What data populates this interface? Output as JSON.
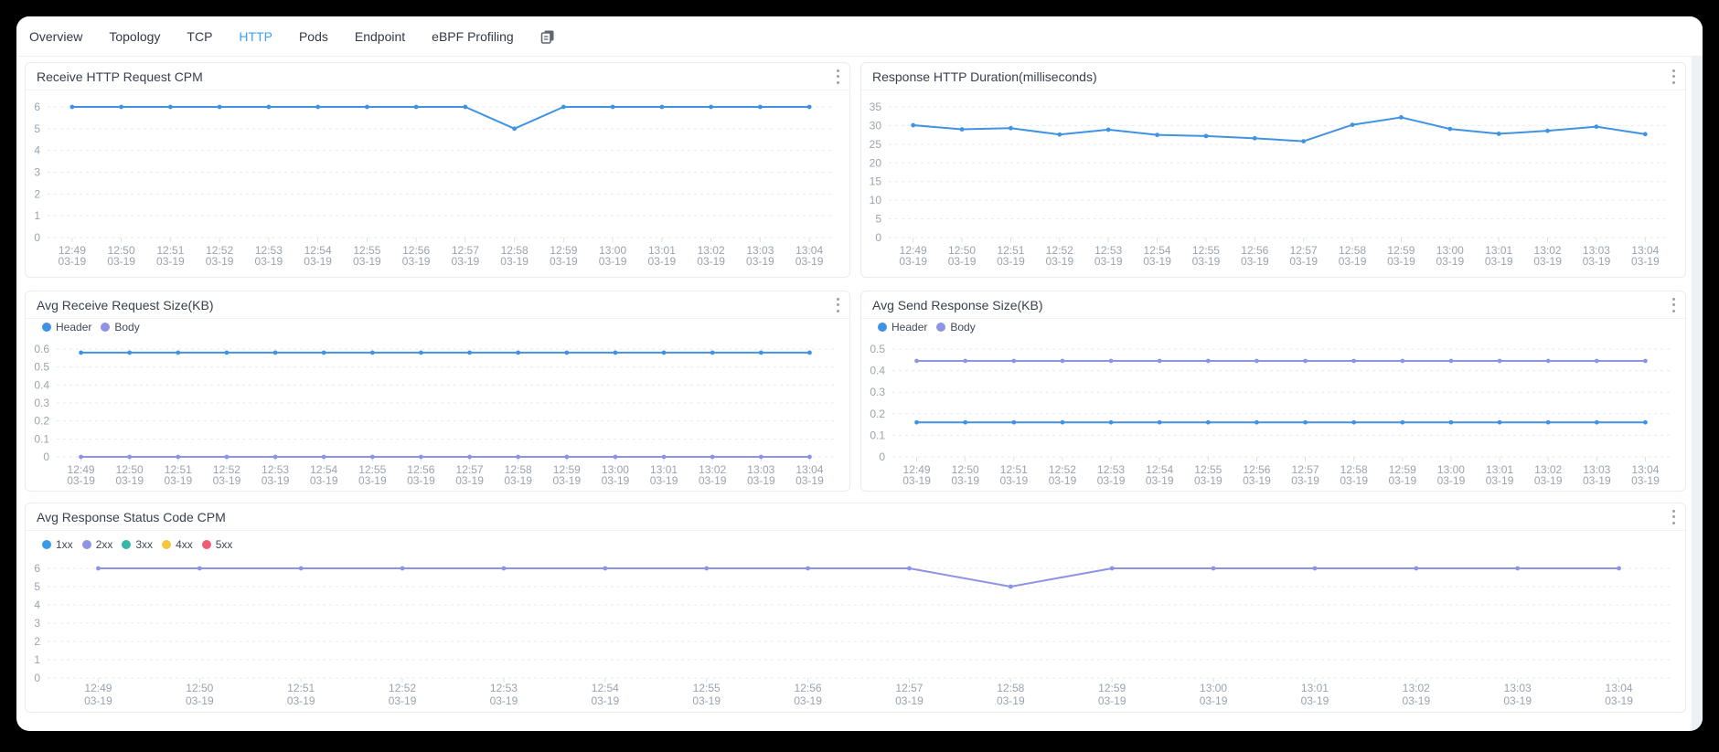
{
  "tabs": {
    "items": [
      {
        "label": "Overview",
        "active": false
      },
      {
        "label": "Topology",
        "active": false
      },
      {
        "label": "TCP",
        "active": false
      },
      {
        "label": "HTTP",
        "active": true
      },
      {
        "label": "Pods",
        "active": false
      },
      {
        "label": "Endpoint",
        "active": false
      },
      {
        "label": "eBPF Profiling",
        "active": false
      }
    ]
  },
  "colors": {
    "active_tab": "#3ba0f8",
    "line_blue": "#4093e4",
    "line_purple": "#8e94e3",
    "teal": "#38b6a8",
    "amber": "#f7c53f",
    "rose": "#f15c75"
  },
  "x_axis": {
    "times": [
      "12:49",
      "12:50",
      "12:51",
      "12:52",
      "12:53",
      "12:54",
      "12:55",
      "12:56",
      "12:57",
      "12:58",
      "12:59",
      "13:00",
      "13:01",
      "13:02",
      "13:03",
      "13:04"
    ],
    "date": "03-19"
  },
  "chart_data": [
    {
      "type": "line",
      "title": "Receive HTTP Request CPM",
      "ylim": [
        0,
        6
      ],
      "yticks": [
        0,
        1,
        2,
        3,
        4,
        5,
        6
      ],
      "legend_visible": false,
      "grid": "dashed-horizontal",
      "series": [
        {
          "name": "Receive HTTP Request CPM",
          "color": "#4093e4",
          "values": [
            6,
            6,
            6,
            6,
            6,
            6,
            6,
            6,
            6,
            5,
            6,
            6,
            6,
            6,
            6,
            6
          ]
        }
      ]
    },
    {
      "type": "line",
      "title": "Response HTTP Duration(milliseconds)",
      "ylim": [
        0,
        35
      ],
      "yticks": [
        0,
        5,
        10,
        15,
        20,
        25,
        30,
        35
      ],
      "legend_visible": false,
      "grid": "dashed-horizontal",
      "series": [
        {
          "name": "Response HTTP Duration",
          "color": "#4093e4",
          "values": [
            30.1,
            29,
            29.3,
            27.6,
            28.9,
            27.5,
            27.2,
            26.6,
            25.8,
            30.2,
            32.2,
            29.1,
            27.8,
            28.6,
            29.7,
            27.7
          ]
        }
      ]
    },
    {
      "type": "line",
      "title": "Avg Receive Request Size(KB)",
      "ylim": [
        0,
        0.6
      ],
      "yticks": [
        0,
        0.1,
        0.2,
        0.3,
        0.4,
        0.5,
        0.6
      ],
      "legend_visible": true,
      "grid": "dashed-horizontal",
      "series": [
        {
          "name": "Header",
          "color": "#4093e4",
          "values": [
            0.58,
            0.58,
            0.58,
            0.58,
            0.58,
            0.58,
            0.58,
            0.58,
            0.58,
            0.58,
            0.58,
            0.58,
            0.58,
            0.58,
            0.58,
            0.58
          ]
        },
        {
          "name": "Body",
          "color": "#8e94e3",
          "values": [
            0,
            0,
            0,
            0,
            0,
            0,
            0,
            0,
            0,
            0,
            0,
            0,
            0,
            0,
            0,
            0
          ]
        }
      ]
    },
    {
      "type": "line",
      "title": "Avg Send Response Size(KB)",
      "ylim": [
        0,
        0.5
      ],
      "yticks": [
        0,
        0.1,
        0.2,
        0.3,
        0.4,
        0.5
      ],
      "legend_visible": true,
      "grid": "dashed-horizontal",
      "series": [
        {
          "name": "Header",
          "color": "#4093e4",
          "values": [
            0.16,
            0.16,
            0.16,
            0.16,
            0.16,
            0.16,
            0.16,
            0.16,
            0.16,
            0.16,
            0.16,
            0.16,
            0.16,
            0.16,
            0.16,
            0.16
          ]
        },
        {
          "name": "Body",
          "color": "#8e94e3",
          "values": [
            0.445,
            0.445,
            0.445,
            0.445,
            0.445,
            0.445,
            0.445,
            0.445,
            0.445,
            0.445,
            0.445,
            0.445,
            0.445,
            0.445,
            0.445,
            0.445
          ]
        }
      ]
    },
    {
      "type": "line",
      "title": "Avg Response Status Code CPM",
      "ylim": [
        0,
        6
      ],
      "yticks": [
        0,
        1,
        2,
        3,
        4,
        5,
        6
      ],
      "legend_visible": true,
      "grid": "dashed-horizontal",
      "series": [
        {
          "name": "1xx",
          "color": "#389be4",
          "values": null
        },
        {
          "name": "2xx",
          "color": "#8e94e3",
          "values": [
            6,
            6,
            6,
            6,
            6,
            6,
            6,
            6,
            6,
            5,
            6,
            6,
            6,
            6,
            6,
            6
          ]
        },
        {
          "name": "3xx",
          "color": "#38b6a8",
          "values": null
        },
        {
          "name": "4xx",
          "color": "#f7c53f",
          "values": null
        },
        {
          "name": "5xx",
          "color": "#f15c75",
          "values": null
        }
      ]
    }
  ]
}
